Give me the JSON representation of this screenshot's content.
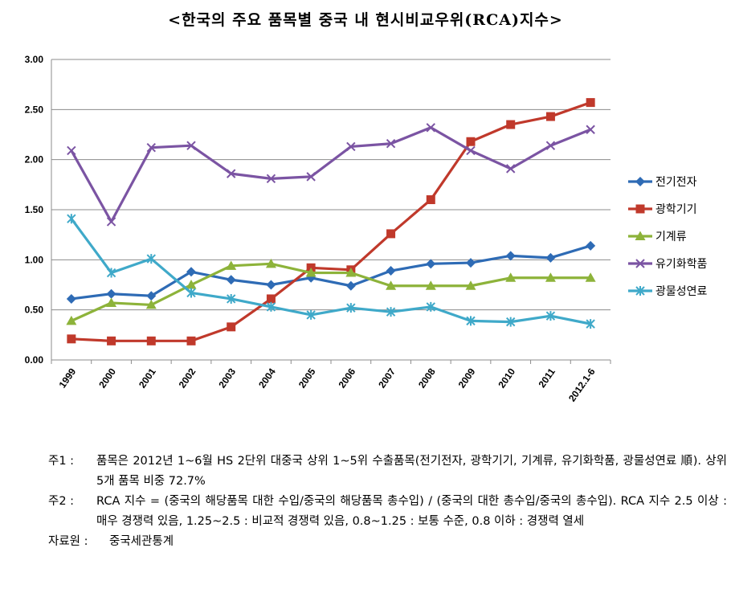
{
  "title": "<한국의 주요 품목별 중국 내 현시비교우위(RCA)지수>",
  "chart_data": {
    "type": "line",
    "categories": [
      "1999",
      "2000",
      "2001",
      "2002",
      "2003",
      "2004",
      "2005",
      "2006",
      "2007",
      "2008",
      "2009",
      "2010",
      "2011",
      "2012.1-6"
    ],
    "ylim": [
      0,
      3
    ],
    "yticks": [
      "0.00",
      "0.50",
      "1.00",
      "1.50",
      "2.00",
      "2.50",
      "3.00"
    ],
    "grid": "horizontal",
    "legend_position": "right",
    "series": [
      {
        "name": "전기전자",
        "color": "#2E6BB5",
        "marker": "diamond",
        "values": [
          0.61,
          0.66,
          0.64,
          0.88,
          0.8,
          0.75,
          0.82,
          0.74,
          0.89,
          0.96,
          0.97,
          1.04,
          1.02,
          1.14
        ]
      },
      {
        "name": "광학기기",
        "color": "#C0392B",
        "marker": "square",
        "values": [
          0.21,
          0.19,
          0.19,
          0.19,
          0.33,
          0.61,
          0.92,
          0.9,
          1.26,
          1.6,
          2.18,
          2.35,
          2.43,
          2.57
        ]
      },
      {
        "name": "기계류",
        "color": "#8DB33A",
        "marker": "triangle",
        "values": [
          0.39,
          0.57,
          0.55,
          0.75,
          0.94,
          0.96,
          0.87,
          0.87,
          0.74,
          0.74,
          0.74,
          0.82,
          0.82,
          0.82
        ]
      },
      {
        "name": "유기화학품",
        "color": "#7B54A3",
        "marker": "x",
        "values": [
          2.09,
          1.38,
          2.12,
          2.14,
          1.86,
          1.81,
          1.83,
          2.13,
          2.16,
          2.32,
          2.09,
          1.91,
          2.14,
          2.3
        ]
      },
      {
        "name": "광물성연료",
        "color": "#3FA9C9",
        "marker": "star",
        "values": [
          1.41,
          0.87,
          1.01,
          0.67,
          0.61,
          0.53,
          0.45,
          0.52,
          0.48,
          0.53,
          0.39,
          0.38,
          0.44,
          0.36
        ]
      }
    ]
  },
  "notes": [
    {
      "head": "주1 :",
      "body": "품목은 2012년 1~6월 HS 2단위 대중국 상위 1~5위 수출품목(전기전자, 광학기기, 기계류, 유기화학품, 광물성연료 順). 상위 5개 품목 비중 72.7%"
    },
    {
      "head": "주2 :",
      "body": "RCA 지수 = (중국의 해당품목 대한 수입/중국의 해당품목 총수입) / (중국의 대한 총수입/중국의 총수입). RCA 지수 2.5 이상 : 매우 경쟁력 있음, 1.25~2.5 : 비교적 경쟁력 있음, 0.8~1.25 : 보통 수준, 0.8 이하 : 경쟁력 열세"
    }
  ],
  "source": {
    "head": "자료원 :",
    "body": "중국세관통계"
  }
}
